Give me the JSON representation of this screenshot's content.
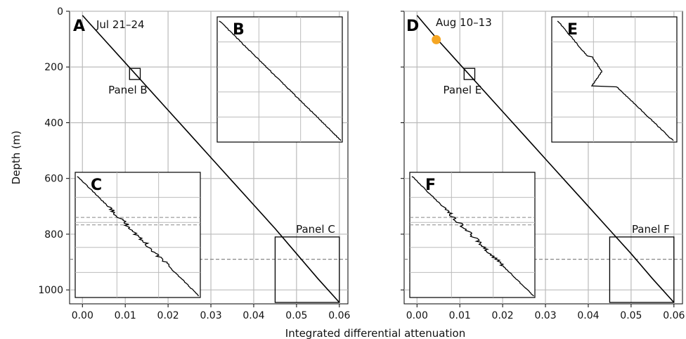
{
  "figure": {
    "xlabel": "Integrated differential attenuation",
    "ylabel": "Depth (m)"
  },
  "chart_data": [
    {
      "type": "line",
      "panel": "A",
      "date_label": "Jul 21–24",
      "xlim": [
        -0.003,
        0.062
      ],
      "ylim": [
        1050,
        0
      ],
      "y_inverted": true,
      "grid": true,
      "x_ticks": [
        "0.00",
        "0.01",
        "0.02",
        "0.03",
        "0.04",
        "0.05",
        "0.06"
      ],
      "y_ticks": [
        "0",
        "200",
        "400",
        "600",
        "800",
        "1000"
      ],
      "series": [
        {
          "x": [
            0.0,
            0.005,
            0.01,
            0.015,
            0.02,
            0.025,
            0.03,
            0.035,
            0.04,
            0.045,
            0.05,
            0.055,
            0.06
          ],
          "y": [
            15,
            100,
            185,
            270,
            355,
            440,
            525,
            610,
            695,
            780,
            870,
            960,
            1045
          ]
        }
      ],
      "reference_line": {
        "depth": 890,
        "style": "dashed"
      },
      "zoom_boxes": [
        {
          "label": "Panel B",
          "x_range": [
            0.011,
            0.0135
          ],
          "y_range": [
            205,
            245
          ]
        },
        {
          "label": "Panel C",
          "x_range": [
            0.045,
            0.06
          ],
          "y_range": [
            810,
            1045
          ]
        }
      ]
    },
    {
      "type": "line",
      "panel": "D",
      "date_label": "Aug 10–13",
      "xlim": [
        -0.003,
        0.062
      ],
      "ylim": [
        1050,
        0
      ],
      "y_inverted": true,
      "grid": true,
      "x_ticks": [
        "0.00",
        "0.01",
        "0.02",
        "0.03",
        "0.04",
        "0.05",
        "0.06"
      ],
      "y_ticks": [
        "0",
        "200",
        "400",
        "600",
        "800",
        "1000"
      ],
      "series": [
        {
          "x": [
            0.0,
            0.005,
            0.01,
            0.015,
            0.02,
            0.025,
            0.03,
            0.035,
            0.04,
            0.045,
            0.05,
            0.055,
            0.06
          ],
          "y": [
            15,
            105,
            190,
            275,
            360,
            445,
            530,
            615,
            700,
            785,
            870,
            960,
            1045
          ]
        }
      ],
      "marker": {
        "x": 0.0045,
        "y": 102,
        "color": "#f5a623"
      },
      "reference_line": {
        "depth": 890,
        "style": "dashed"
      },
      "zoom_boxes": [
        {
          "label": "Panel E",
          "x_range": [
            0.011,
            0.0135
          ],
          "y_range": [
            205,
            245
          ]
        },
        {
          "label": "Panel F",
          "x_range": [
            0.045,
            0.06
          ],
          "y_range": [
            810,
            1045
          ]
        }
      ]
    }
  ],
  "insets": [
    {
      "letter": "B",
      "detail": "zoom of Panel B box",
      "shape": "smooth"
    },
    {
      "letter": "C",
      "detail": "zoom of Panel C box",
      "shape": "jagged",
      "dashed_line_levels": [
        0.36,
        0.42
      ]
    },
    {
      "letter": "E",
      "detail": "zoom of Panel E box",
      "shape": "bump"
    },
    {
      "letter": "F",
      "detail": "zoom of Panel F box",
      "shape": "jagged",
      "dashed_line_levels": [
        0.36,
        0.42
      ]
    }
  ],
  "colors": {
    "line": "#000000",
    "grid": "#bbbbbb",
    "dashed": "#888888",
    "marker": "#f5a623"
  }
}
